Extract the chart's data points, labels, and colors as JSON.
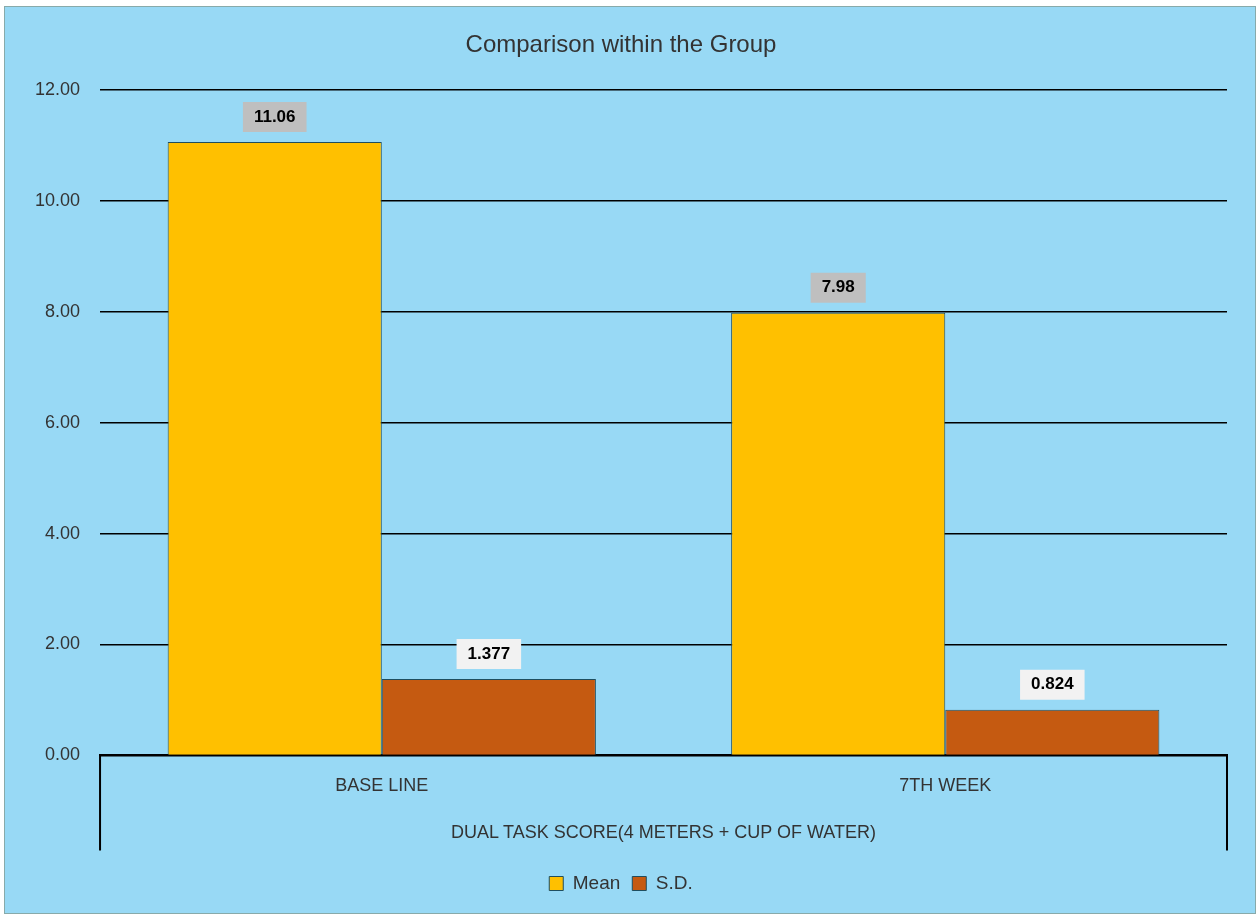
{
  "chart_data": {
    "type": "bar",
    "title": "Comparison within the Group",
    "categories": [
      "BASE LINE",
      "7TH WEEK"
    ],
    "xlabel": "DUAL TASK SCORE(4 METERS + CUP OF WATER)",
    "series": [
      {
        "name": "Mean",
        "color": "#ffc000",
        "values": [
          11.06,
          7.98
        ]
      },
      {
        "name": "S.D.",
        "color": "#c55a11",
        "values": [
          1.377,
          0.824
        ]
      }
    ],
    "ylim": [
      0,
      12
    ],
    "yticks": [
      {
        "value": 0,
        "label": "0.00"
      },
      {
        "value": 2,
        "label": "2.00"
      },
      {
        "value": 4,
        "label": "4.00"
      },
      {
        "value": 6,
        "label": "6.00"
      },
      {
        "value": 8,
        "label": "8.00"
      },
      {
        "value": 10,
        "label": "10.00"
      },
      {
        "value": 12,
        "label": "12.00"
      }
    ],
    "grid": "y",
    "legend": "bottom",
    "data_labels": true
  }
}
